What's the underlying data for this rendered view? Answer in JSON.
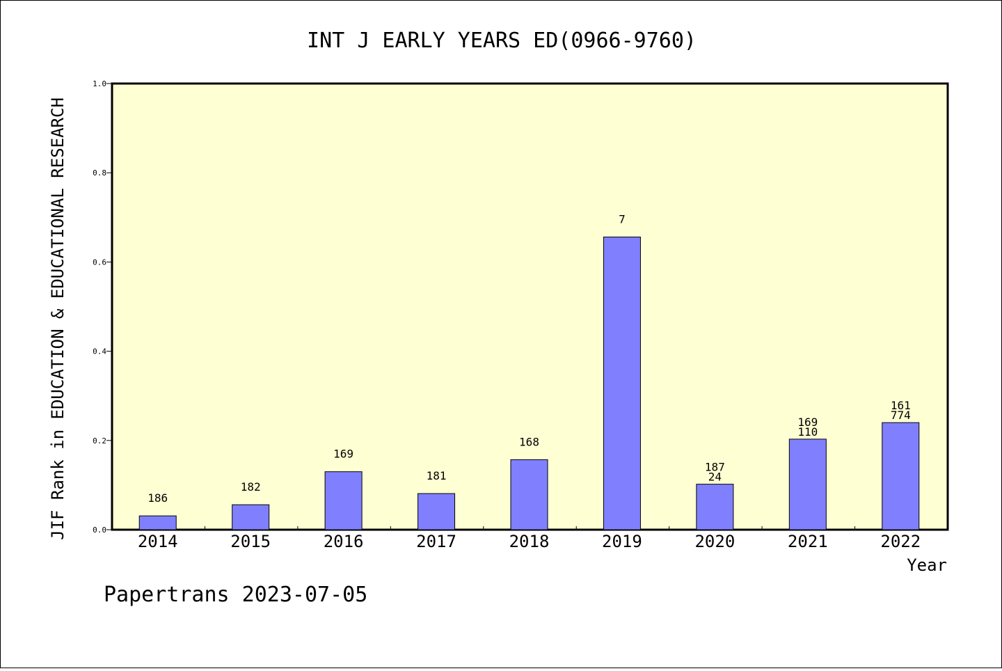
{
  "chart_data": {
    "type": "bar",
    "title": "INT J EARLY YEARS ED(0966-9760)",
    "xlabel": "Year",
    "ylabel": "JIF Rank in EDUCATION & EDUCATIONAL RESEARCH",
    "categories": [
      "2014",
      "2015",
      "2016",
      "2017",
      "2018",
      "2019",
      "2020",
      "2021",
      "2022"
    ],
    "values": [
      0.031,
      0.056,
      0.13,
      0.081,
      0.157,
      0.656,
      0.102,
      0.203,
      0.24
    ],
    "bar_labels": [
      [
        "186"
      ],
      [
        "182"
      ],
      [
        "169"
      ],
      [
        "181"
      ],
      [
        "168"
      ],
      [
        "7"
      ],
      [
        "187",
        "24"
      ],
      [
        "169",
        "110"
      ],
      [
        "161",
        "774"
      ]
    ],
    "ylim": [
      0,
      1.0
    ],
    "yticks": [
      "0.0",
      "0.2",
      "0.4",
      "0.6",
      "0.8",
      "1.0"
    ],
    "grid": false,
    "colors": {
      "plot_background": "#ffffd4",
      "bar_fill": "#8080ff",
      "bar_stroke": "#000000"
    }
  },
  "footer": {
    "text": "Papertrans 2023-07-05"
  }
}
